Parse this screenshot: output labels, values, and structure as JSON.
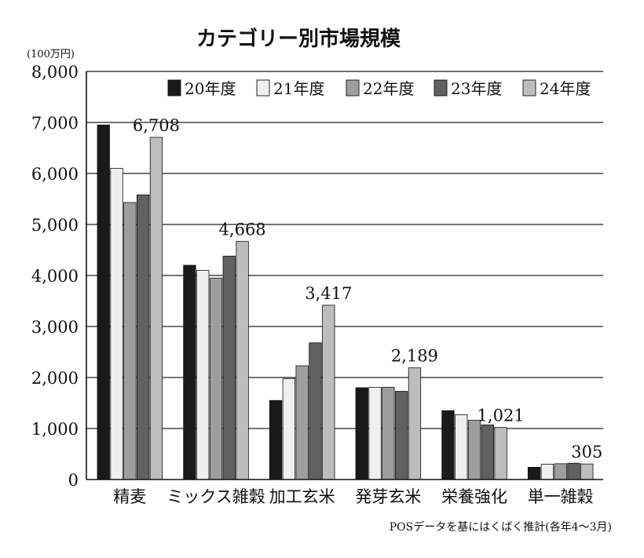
{
  "chart_data": {
    "type": "bar",
    "title": "カテゴリー別市場規模",
    "unit_label": "(100万円)",
    "categories": [
      "精麦",
      "ミックス雑穀",
      "加工玄米",
      "発芽玄米",
      "栄養強化",
      "単一雑穀"
    ],
    "series": [
      {
        "name": "20年度",
        "color": "#1a1a1a",
        "values": [
          6950,
          4200,
          1550,
          1800,
          1350,
          240
        ]
      },
      {
        "name": "21年度",
        "color": "#efefef",
        "values": [
          6100,
          4100,
          1980,
          1810,
          1270,
          300
        ]
      },
      {
        "name": "22年度",
        "color": "#9e9e9e",
        "values": [
          5430,
          3950,
          2230,
          1810,
          1160,
          310
        ]
      },
      {
        "name": "23年度",
        "color": "#616161",
        "values": [
          5580,
          4380,
          2680,
          1730,
          1070,
          320
        ]
      },
      {
        "name": "24年度",
        "color": "#bdbdbd",
        "values": [
          6708,
          4668,
          3417,
          2189,
          1021,
          305
        ]
      }
    ],
    "data_labels": [
      "6,708",
      "4,668",
      "3,417",
      "2,189",
      "1,021",
      "305"
    ],
    "ylim": [
      0,
      8000
    ],
    "yticks": [
      "0",
      "1,000",
      "2,000",
      "3,000",
      "4,000",
      "5,000",
      "6,000",
      "7,000",
      "8,000"
    ],
    "xlabel": "",
    "ylabel": "",
    "grid": true,
    "legend_position": "top-right",
    "note": "POSデータを基にはくばく推計(各年4～3月)"
  }
}
